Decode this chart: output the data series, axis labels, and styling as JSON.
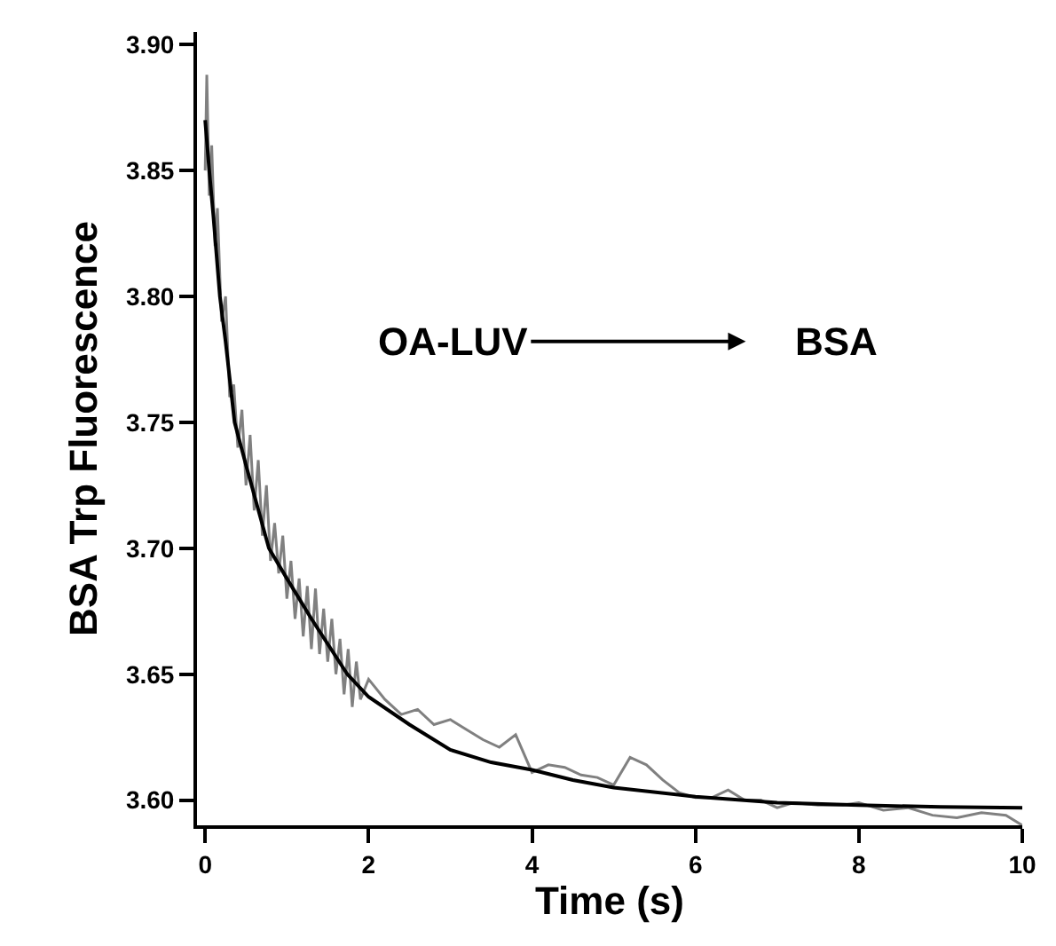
{
  "chart_data": {
    "type": "line",
    "xlabel": "Time (s)",
    "ylabel": "BSA Trp Fluorescence",
    "annotations": [
      "OA-LUV",
      "BSA"
    ],
    "xlim": [
      -0.1,
      10
    ],
    "xticks": [
      0,
      2,
      4,
      6,
      8,
      10
    ],
    "ylim": [
      3.59,
      3.905
    ],
    "yticks": [
      {
        "value": 3.6,
        "label": "3.60"
      },
      {
        "value": 3.65,
        "label": "3.65"
      },
      {
        "value": 3.7,
        "label": "3.70"
      },
      {
        "value": 3.75,
        "label": "3.75"
      },
      {
        "value": 3.8,
        "label": "3.80"
      },
      {
        "value": 3.85,
        "label": "3.85"
      },
      {
        "value": 3.9,
        "label": "3.90"
      }
    ],
    "marker": "none",
    "line_style": "solid",
    "series": [
      {
        "color": "#808080",
        "x": [
          0,
          0.02,
          0.05,
          0.08,
          0.12,
          0.15,
          0.2,
          0.25,
          0.3,
          0.35,
          0.4,
          0.45,
          0.5,
          0.55,
          0.6,
          0.65,
          0.7,
          0.75,
          0.8,
          0.85,
          0.9,
          0.95,
          1.0,
          1.05,
          1.1,
          1.15,
          1.2,
          1.25,
          1.3,
          1.35,
          1.4,
          1.45,
          1.5,
          1.55,
          1.6,
          1.65,
          1.7,
          1.75,
          1.8,
          1.85,
          1.9,
          2.0,
          2.2,
          2.4,
          2.6,
          2.8,
          3.0,
          3.2,
          3.4,
          3.6,
          3.8,
          4.0,
          4.2,
          4.4,
          4.6,
          4.8,
          5.0,
          5.2,
          5.4,
          5.6,
          5.8,
          6.0,
          6.2,
          6.4,
          6.6,
          6.8,
          7.0,
          7.2,
          7.5,
          7.8,
          8.0,
          8.3,
          8.6,
          8.9,
          9.2,
          9.5,
          9.8,
          10.0
        ],
        "values": [
          3.85,
          3.888,
          3.84,
          3.86,
          3.82,
          3.835,
          3.79,
          3.8,
          3.76,
          3.765,
          3.74,
          3.755,
          3.725,
          3.745,
          3.715,
          3.735,
          3.705,
          3.725,
          3.695,
          3.71,
          3.69,
          3.705,
          3.68,
          3.695,
          3.672,
          3.688,
          3.665,
          3.685,
          3.66,
          3.684,
          3.658,
          3.676,
          3.655,
          3.672,
          3.65,
          3.664,
          3.642,
          3.66,
          3.637,
          3.655,
          3.64,
          3.648,
          3.64,
          3.634,
          3.636,
          3.63,
          3.632,
          3.628,
          3.624,
          3.621,
          3.626,
          3.611,
          3.614,
          3.613,
          3.61,
          3.609,
          3.606,
          3.617,
          3.614,
          3.608,
          3.603,
          3.601,
          3.601,
          3.604,
          3.6,
          3.6,
          3.597,
          3.599,
          3.598,
          3.598,
          3.599,
          3.596,
          3.597,
          3.594,
          3.593,
          3.595,
          3.594,
          3.59
        ]
      },
      {
        "color": "#000000",
        "x": [
          0,
          0.05,
          0.1,
          0.18,
          0.25,
          0.36,
          0.5,
          0.78,
          1.0,
          1.3,
          1.74,
          2.0,
          2.5,
          3.0,
          3.5,
          4.0,
          4.5,
          5.0,
          6.0,
          7.0,
          8.0,
          9.0,
          10.0
        ],
        "values": [
          3.87,
          3.85,
          3.832,
          3.8,
          3.782,
          3.75,
          3.733,
          3.7,
          3.688,
          3.672,
          3.65,
          3.641,
          3.63,
          3.62,
          3.615,
          3.612,
          3.608,
          3.605,
          3.6014,
          3.599,
          3.598,
          3.5973,
          3.597
        ]
      }
    ]
  }
}
